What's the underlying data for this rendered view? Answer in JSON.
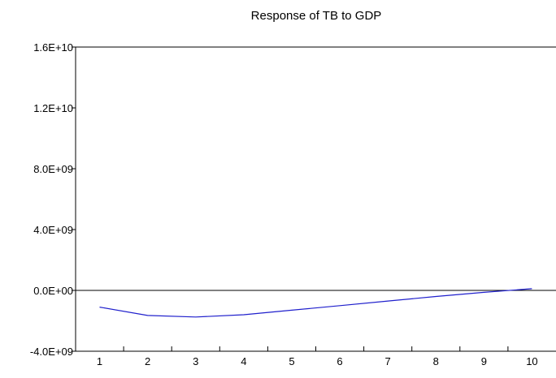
{
  "chart_data": {
    "type": "line",
    "title": "Response of TB to GDP",
    "xlabel": "",
    "ylabel": "",
    "x": [
      1,
      2,
      3,
      4,
      5,
      6,
      7,
      8,
      9,
      10
    ],
    "x_tick_labels": [
      "1",
      "2",
      "3",
      "4",
      "5",
      "6",
      "7",
      "8",
      "9",
      "10"
    ],
    "series": [
      {
        "values": [
          -1100000000,
          -1650000000,
          -1750000000,
          -1600000000,
          -1300000000,
          -1000000000,
          -700000000,
          -400000000,
          -130000000,
          110000000
        ],
        "color": "#1f1fcc"
      }
    ],
    "ylim": [
      -4000000000,
      16000000000
    ],
    "y_ticks": [
      -4000000000,
      0,
      4000000000,
      8000000000,
      12000000000,
      16000000000
    ],
    "y_tick_labels": [
      "-4.0E+09",
      "0.0E+00",
      "4.0E+09",
      "8.0E+09",
      "1.2E+10",
      "1.6E+10"
    ],
    "zero_line": true,
    "grid": false,
    "legend": "none"
  }
}
